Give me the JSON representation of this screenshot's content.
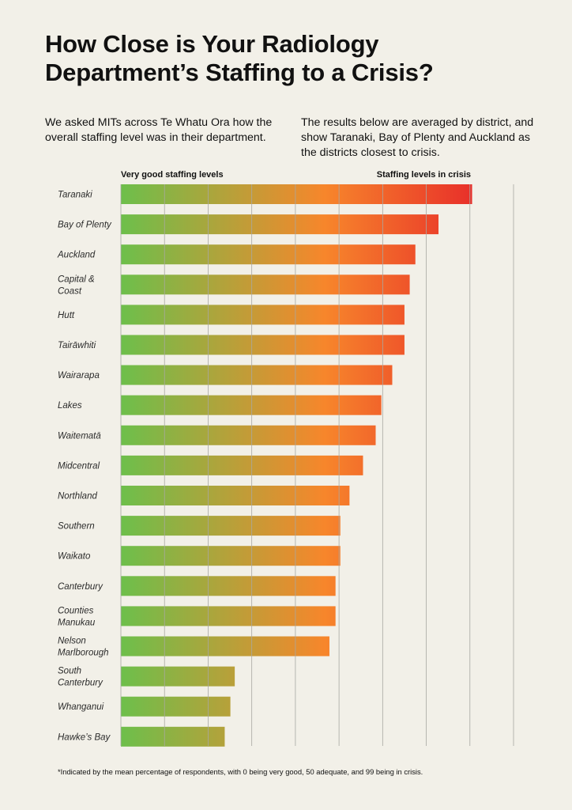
{
  "header": {
    "title_line1": "How Close is Your Radiology",
    "title_line2": "Department’s Staffing to a Crisis?"
  },
  "intro": {
    "left": "We asked MITs across Te Whatu Ora how the overall staffing level was in their department.",
    "right": "The results below are averaged by district, and show Taranaki, Bay of Plenty and Auckland as the districts closest to crisis."
  },
  "scale": {
    "good_label": "Very good staffing levels",
    "crisis_label": "Staffing levels in crisis"
  },
  "footnote": "*Indicated by the mean percentage of respondents, with 0 being very good, 50 adequate, and 99 being in crisis.",
  "colors": {
    "background": "#f2f0e8",
    "good_green": "#6dbf4b",
    "mid_orange": "#f7862b",
    "crisis_red": "#e8302a",
    "gridline": "#a8a8a2"
  },
  "chart_data": {
    "type": "bar",
    "orientation": "horizontal",
    "categories": [
      [
        "Taranaki"
      ],
      [
        "Bay of Plenty"
      ],
      [
        "Auckland"
      ],
      [
        "Capital &",
        "Coast"
      ],
      [
        "Hutt"
      ],
      [
        "Tairāwhiti"
      ],
      [
        "Wairarapa"
      ],
      [
        "Lakes"
      ],
      [
        "Waitematā"
      ],
      [
        "Midcentral"
      ],
      [
        "Northland"
      ],
      [
        "Southern"
      ],
      [
        "Waikato"
      ],
      [
        "Canterbury"
      ],
      [
        "Counties",
        "Manukau"
      ],
      [
        "Nelson",
        "Marlborough"
      ],
      [
        "South",
        "Canterbury"
      ],
      [
        "Whanganui"
      ],
      [
        "Hawke’s Bay"
      ]
    ],
    "values": [
      80.5,
      72.8,
      67.5,
      66.2,
      65.0,
      65.0,
      62.2,
      59.7,
      58.4,
      55.5,
      52.4,
      50.3,
      50.3,
      49.2,
      49.2,
      47.8,
      26.1,
      25.1,
      23.8
    ],
    "xlim": [
      0,
      90
    ],
    "grid_step": 10,
    "grid": true,
    "xlabel": "",
    "ylabel": "",
    "color_scale": "green (low) to red (high)"
  }
}
